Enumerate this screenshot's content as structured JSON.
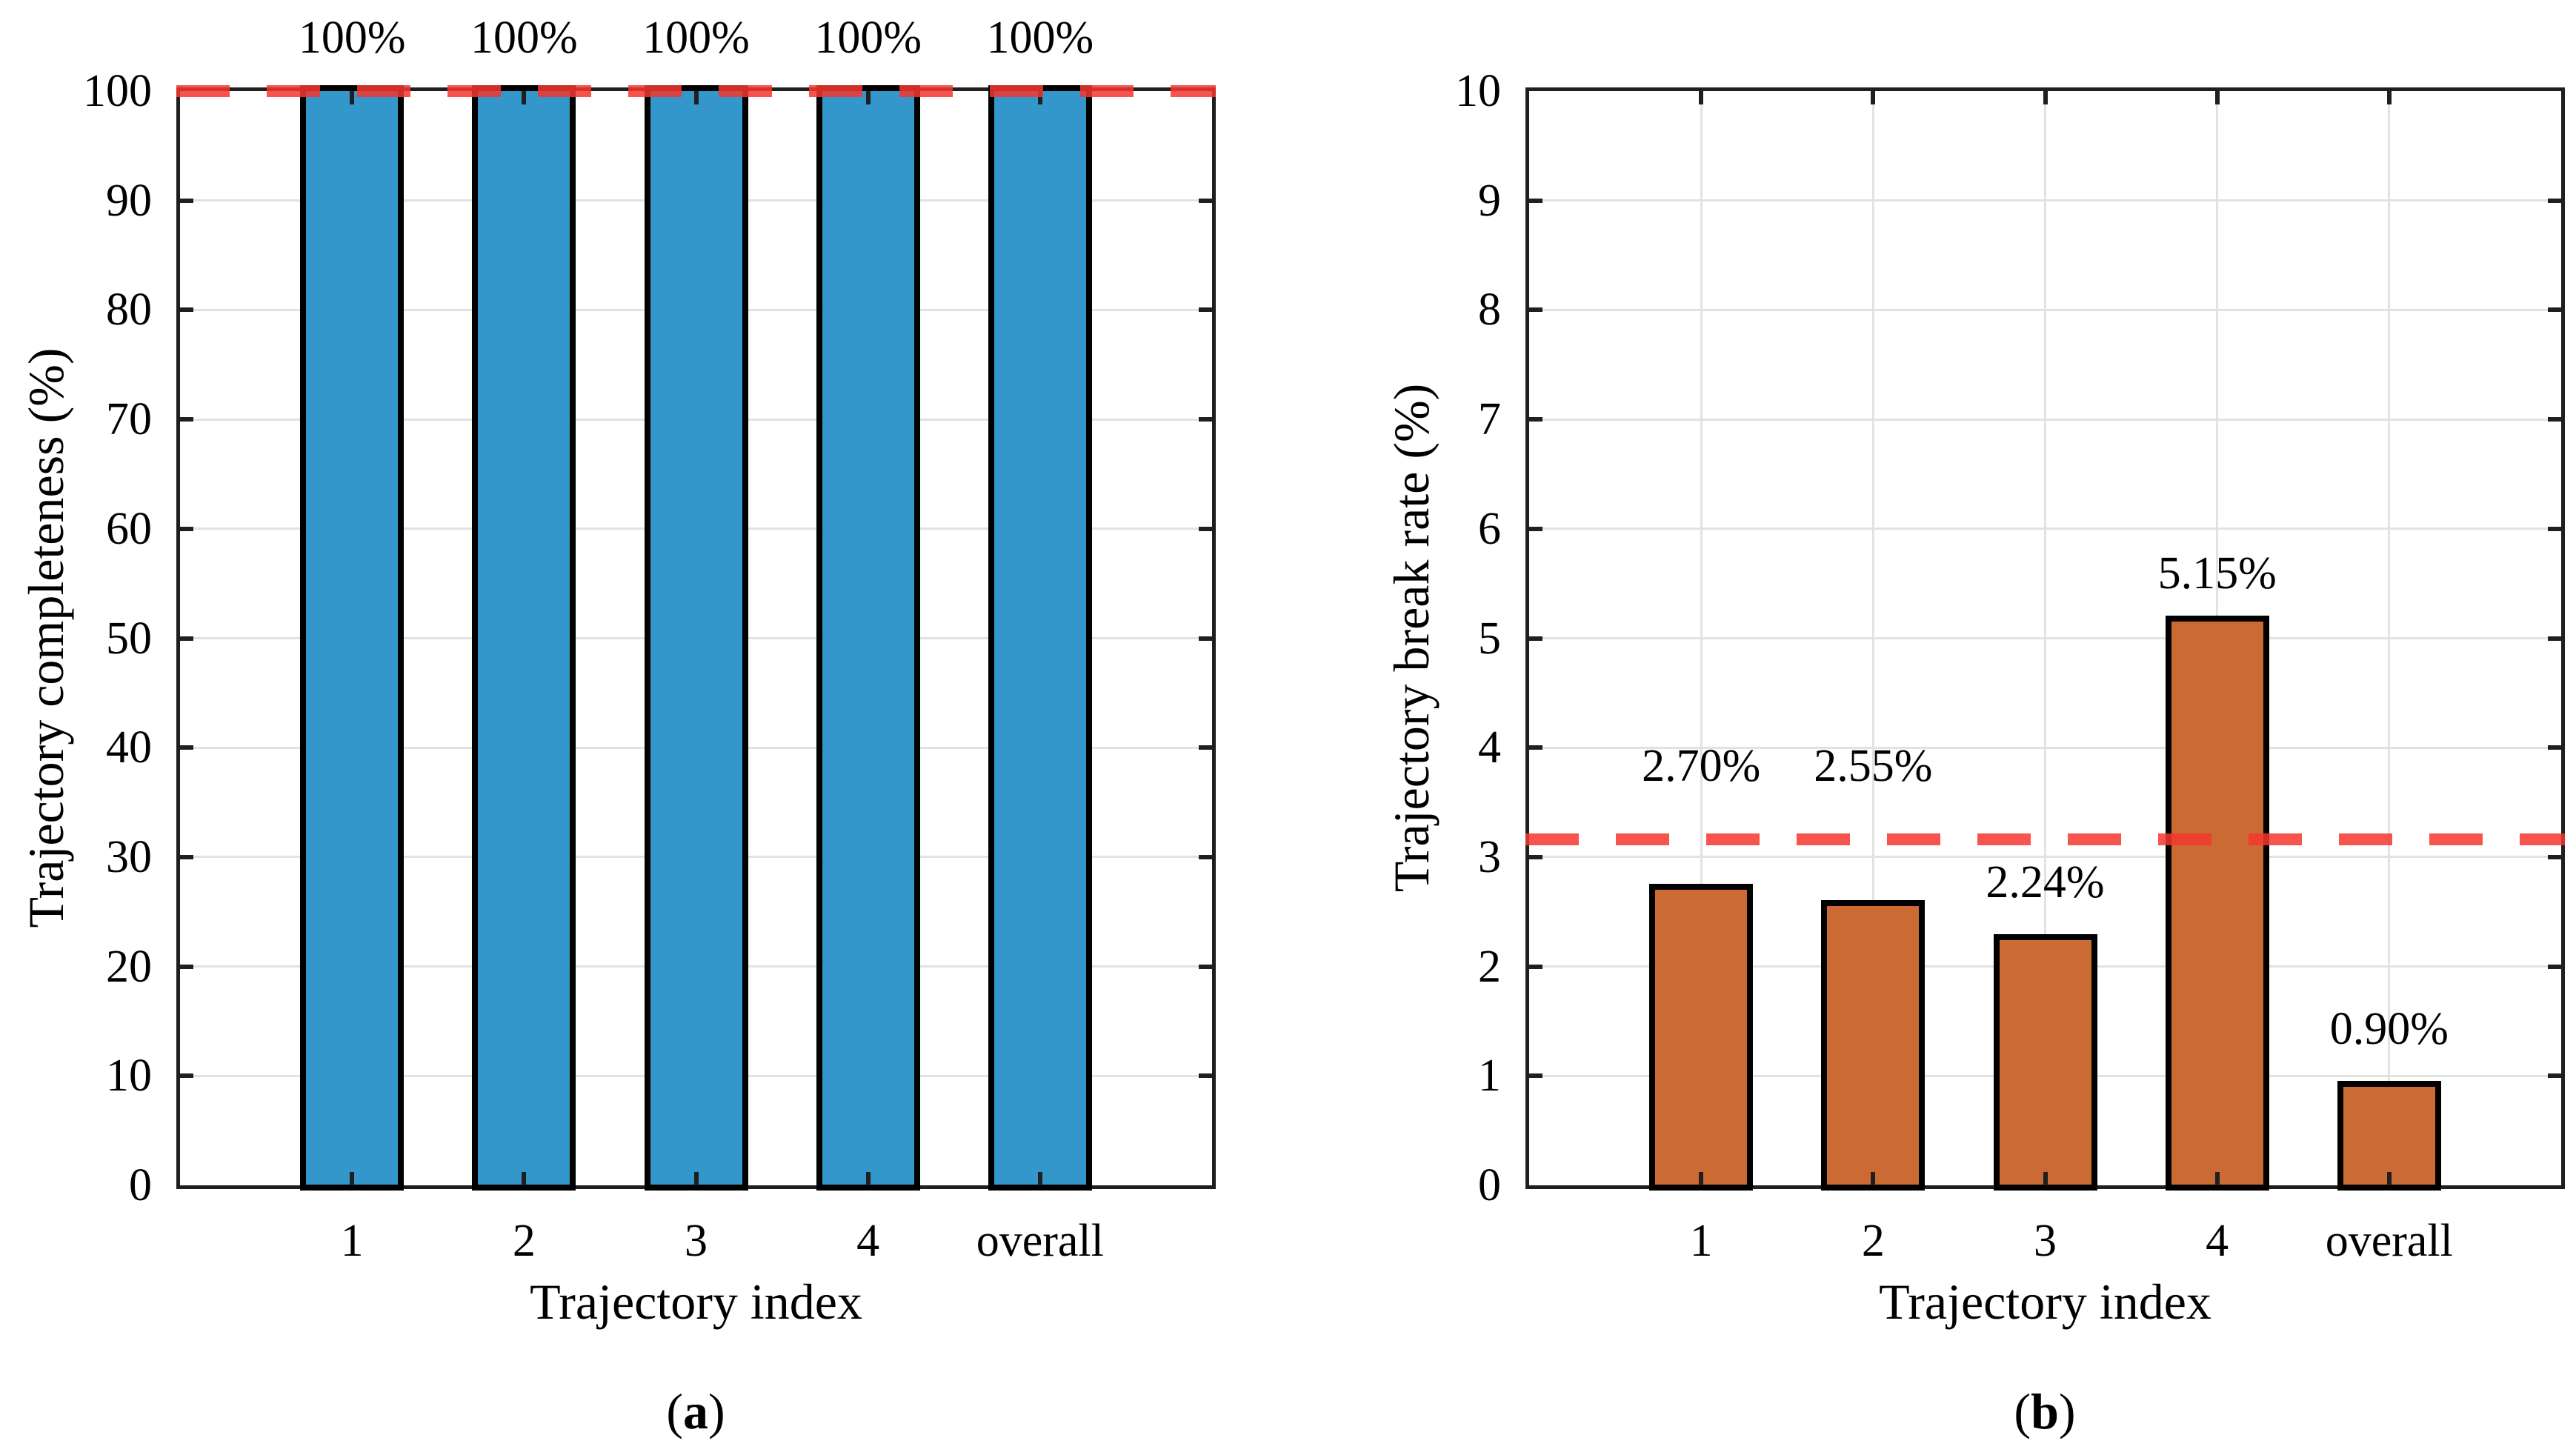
{
  "figure": {
    "background": "#ffffff",
    "axis_color": "#1f1f1f",
    "grid_color": "#e2e2e2",
    "bar_edge_color": "#000000",
    "reference_line_color": "rgba(244,54,46,0.85)"
  },
  "chart_data": [
    {
      "type": "bar",
      "panel": "a",
      "title": "",
      "xlabel": "Trajectory index",
      "ylabel": "Trajectory completeness (%)",
      "categories": [
        "1",
        "2",
        "3",
        "4",
        "overall"
      ],
      "values": [
        100,
        100,
        100,
        100,
        100
      ],
      "bar_labels": [
        "100%",
        "100%",
        "100%",
        "100%",
        "100%"
      ],
      "bar_label_positions": [
        102.8,
        102.8,
        102.8,
        102.8,
        102.8
      ],
      "bar_color": "#3497cb",
      "ylim": [
        0,
        100
      ],
      "yticks": [
        "0",
        "10",
        "20",
        "30",
        "40",
        "50",
        "60",
        "70",
        "80",
        "90",
        "100"
      ],
      "reference_line_value": 100,
      "grid": true,
      "legend": null,
      "caption_open": "(",
      "caption_letter": "a",
      "caption_close": ")"
    },
    {
      "type": "bar",
      "panel": "b",
      "title": "",
      "xlabel": "Trajectory index",
      "ylabel": "Trajectory break rate (%)",
      "categories": [
        "1",
        "2",
        "3",
        "4",
        "overall"
      ],
      "values": [
        2.7,
        2.55,
        2.24,
        5.15,
        0.9
      ],
      "bar_labels": [
        "2.70%",
        "2.55%",
        "2.24%",
        "5.15%",
        "0.90%"
      ],
      "bar_label_positions": [
        3.62,
        3.62,
        2.56,
        5.38,
        1.22
      ],
      "bar_color": "#cb6a33",
      "ylim": [
        0,
        10
      ],
      "yticks": [
        "0",
        "1",
        "2",
        "3",
        "4",
        "5",
        "6",
        "7",
        "8",
        "9",
        "10"
      ],
      "reference_line_value": 3.16,
      "grid": true,
      "legend": null,
      "caption_open": "(",
      "caption_letter": "b",
      "caption_close": ")"
    }
  ]
}
